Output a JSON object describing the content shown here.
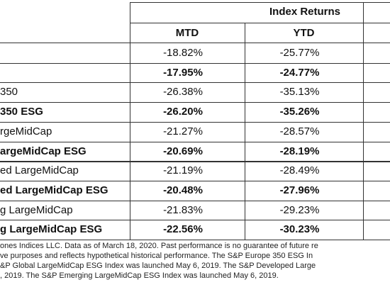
{
  "table": {
    "group_header": "Index Returns",
    "columns": [
      "MTD",
      "YTD"
    ],
    "rows": [
      {
        "mtd": "-18.82%",
        "ytd": "-25.77%"
      },
      {
        "mtd": "-17.95%",
        "ytd": "-24.77%"
      },
      {
        "label": "350",
        "mtd": "-26.38%",
        "ytd": "-35.13%"
      },
      {
        "label": "350 ESG",
        "mtd": "-26.20%",
        "ytd": "-35.26%"
      },
      {
        "label": "rgeMidCap",
        "mtd": "-21.27%",
        "ytd": "-28.57%"
      },
      {
        "label": "argeMidCap ESG",
        "mtd": "-20.69%",
        "ytd": "-28.19%"
      },
      {
        "label": "ed LargeMidCap",
        "mtd": "-21.19%",
        "ytd": "-28.49%"
      },
      {
        "label": "ed LargeMidCap ESG",
        "mtd": "-20.48%",
        "ytd": "-27.96%"
      },
      {
        "label": "g LargeMidCap",
        "mtd": "-21.83%",
        "ytd": "-29.23%"
      },
      {
        "label": "g LargeMidCap ESG",
        "mtd": "-22.56%",
        "ytd": "-30.23%"
      }
    ]
  },
  "footnote": [
    "ones Indices LLC. Data as of March 18, 2020. Past performance is no guarantee of future re",
    "ve purposes and reflects hypothetical historical performance. The S&P Europe 350 ESG In",
    "&P Global LargeMidCap ESG Index was launched May 6, 2019. The S&P Developed Large",
    ", 2019. The S&P Emerging LargeMidCap ESG Index was launched May 6, 2019."
  ]
}
